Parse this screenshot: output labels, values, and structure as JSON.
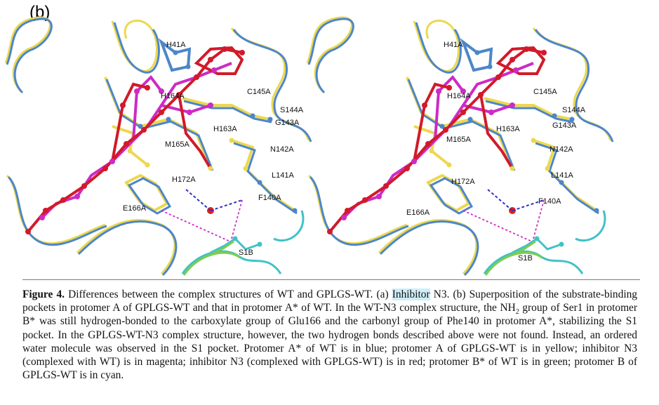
{
  "panel_label": "(b)",
  "residue_labels": [
    "H41A",
    "H164A",
    "C145A",
    "S144A",
    "G143A",
    "H163A",
    "M165A",
    "N142A",
    "L141A",
    "H172A",
    "F140A",
    "E166A",
    "S1B"
  ],
  "colors": {
    "wt_protomer_a": "#4d86c9",
    "gplgs_protomer_a": "#ecd84f",
    "n3_wt": "#cc2bc4",
    "n3_gplgs": "#d11a2a",
    "wt_protomer_b": "#7ccd50",
    "gplgs_protomer_b": "#40c2c6",
    "water": "#e0201e",
    "hbond": "#2a35c4"
  },
  "caption": {
    "label": "Figure 4.",
    "part1": " Differences between the complex structures of WT and GPLGS-WT. (a) ",
    "highlight": "Inhibitor",
    "part2": " N3. (b) Superposition of the substrate-binding pockets in protomer A of GPLGS-WT and that in protomer A* of WT. In the WT-N3 complex structure, the NH",
    "subscript": "2",
    "part3": " group of Ser1 in protomer B* was still hydrogen-bonded to the carboxylate group of Glu166 and the carbonyl group of Phe140 in protomer A*, stabilizing the S1 pocket. In the GPLGS-WT-N3 complex structure, however, the two hydrogen bonds described above were not found. Instead, an ordered water molecule was observed in the S1 pocket. Protomer A* of WT is in blue; protomer A of GPLGS-WT is in yellow; inhibitor N3 (complexed with WT) is in magenta; inhibitor N3 (complexed with GPLGS-WT) is in red; protomer B* of WT is in green; protomer B of GPLGS-WT is in cyan."
  }
}
